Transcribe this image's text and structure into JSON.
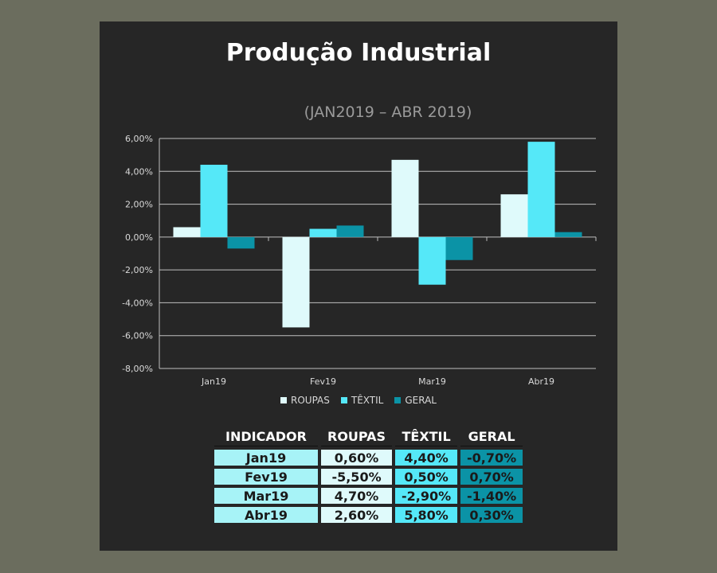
{
  "colors": {
    "panel_bg": "#262626",
    "roupas": "#dffafb",
    "textil": "#55e8f8",
    "geral": "#0b93a6",
    "gridline": "#bfbfbf"
  },
  "chart_data": {
    "type": "bar",
    "title": "Produção Industrial",
    "subtitle": "(JAN2019 – ABR 2019)",
    "categories": [
      "Jan19",
      "Fev19",
      "Mar19",
      "Abr19"
    ],
    "series": [
      {
        "name": "ROUPAS",
        "values": [
          0.6,
          -5.5,
          4.7,
          2.6
        ]
      },
      {
        "name": "TÊXTIL",
        "values": [
          4.4,
          0.5,
          -2.9,
          5.8
        ]
      },
      {
        "name": "GERAL",
        "values": [
          -0.7,
          0.7,
          -1.4,
          0.3
        ]
      }
    ],
    "ylim": [
      -8,
      6
    ],
    "yticks": [
      "6,00%",
      "4,00%",
      "2,00%",
      "0,00%",
      "-2,00%",
      "-4,00%",
      "-6,00%",
      "-8,00%"
    ],
    "ytick_values": [
      6,
      4,
      2,
      0,
      -2,
      -4,
      -6,
      -8
    ],
    "grid": true,
    "legend_position": "bottom"
  },
  "table": {
    "headers": [
      "INDICADOR",
      "ROUPAS",
      "TÊXTIL",
      "GERAL"
    ],
    "rows": [
      [
        "Jan19",
        "0,60%",
        "4,40%",
        "-0,70%"
      ],
      [
        "Fev19",
        "-5,50%",
        "0,50%",
        "0,70%"
      ],
      [
        "Mar19",
        "4,70%",
        "-2,90%",
        "-1,40%"
      ],
      [
        "Abr19",
        "2,60%",
        "5,80%",
        "0,30%"
      ]
    ]
  }
}
